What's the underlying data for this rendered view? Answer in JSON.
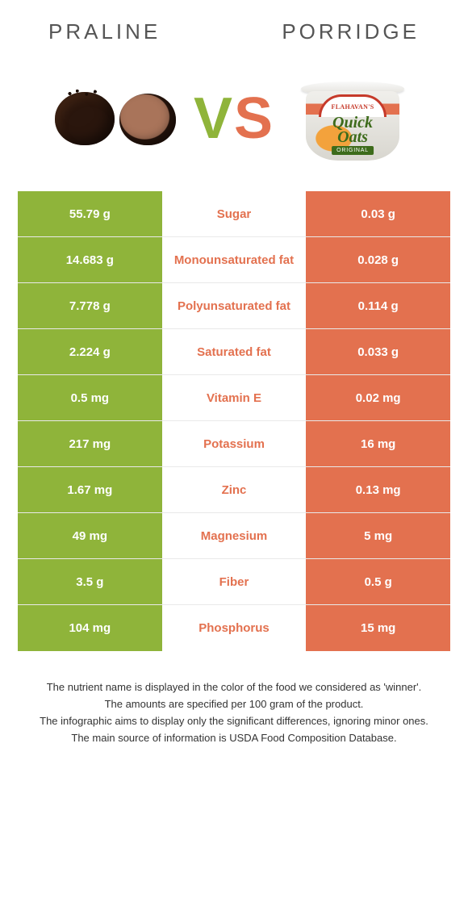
{
  "header": {
    "left_title": "Praline",
    "right_title": "Porridge"
  },
  "hero": {
    "vs_text_v": "V",
    "vs_text_s": "S",
    "porridge_brand": "FLAHAVAN'S",
    "porridge_big1": "Quick",
    "porridge_big2": "Oats",
    "porridge_tag": "ORIGINAL"
  },
  "colors": {
    "left_block": "#8fb43a",
    "right_block": "#e3714f",
    "winner_left_text": "#e3714f",
    "winner_right_text": "#8fb43a",
    "row_divider": "#e9e9e9",
    "background": "#ffffff",
    "body_text": "#333333"
  },
  "table": {
    "columns": [
      "left_value",
      "nutrient",
      "right_value"
    ],
    "rows": [
      {
        "left": "55.79 g",
        "label": "Sugar",
        "right": "0.03 g",
        "winner": "left"
      },
      {
        "left": "14.683 g",
        "label": "Monounsaturated fat",
        "right": "0.028 g",
        "winner": "left"
      },
      {
        "left": "7.778 g",
        "label": "Polyunsaturated fat",
        "right": "0.114 g",
        "winner": "left"
      },
      {
        "left": "2.224 g",
        "label": "Saturated fat",
        "right": "0.033 g",
        "winner": "left"
      },
      {
        "left": "0.5 mg",
        "label": "Vitamin E",
        "right": "0.02 mg",
        "winner": "left"
      },
      {
        "left": "217 mg",
        "label": "Potassium",
        "right": "16 mg",
        "winner": "left"
      },
      {
        "left": "1.67 mg",
        "label": "Zinc",
        "right": "0.13 mg",
        "winner": "left"
      },
      {
        "left": "49 mg",
        "label": "Magnesium",
        "right": "5 mg",
        "winner": "left"
      },
      {
        "left": "3.5 g",
        "label": "Fiber",
        "right": "0.5 g",
        "winner": "left"
      },
      {
        "left": "104 mg",
        "label": "Phosphorus",
        "right": "15 mg",
        "winner": "left"
      }
    ]
  },
  "notes": {
    "line1": "The nutrient name is displayed in the color of the food we considered as 'winner'.",
    "line2": "The amounts are specified per 100 gram of the product.",
    "line3": "The infographic aims to display only the significant differences, ignoring minor ones.",
    "line4": "The main source of information is USDA Food Composition Database."
  },
  "typography": {
    "header_fontsize": 26,
    "cell_fontsize": 15,
    "notes_fontsize": 13,
    "vs_fontsize": 72
  }
}
